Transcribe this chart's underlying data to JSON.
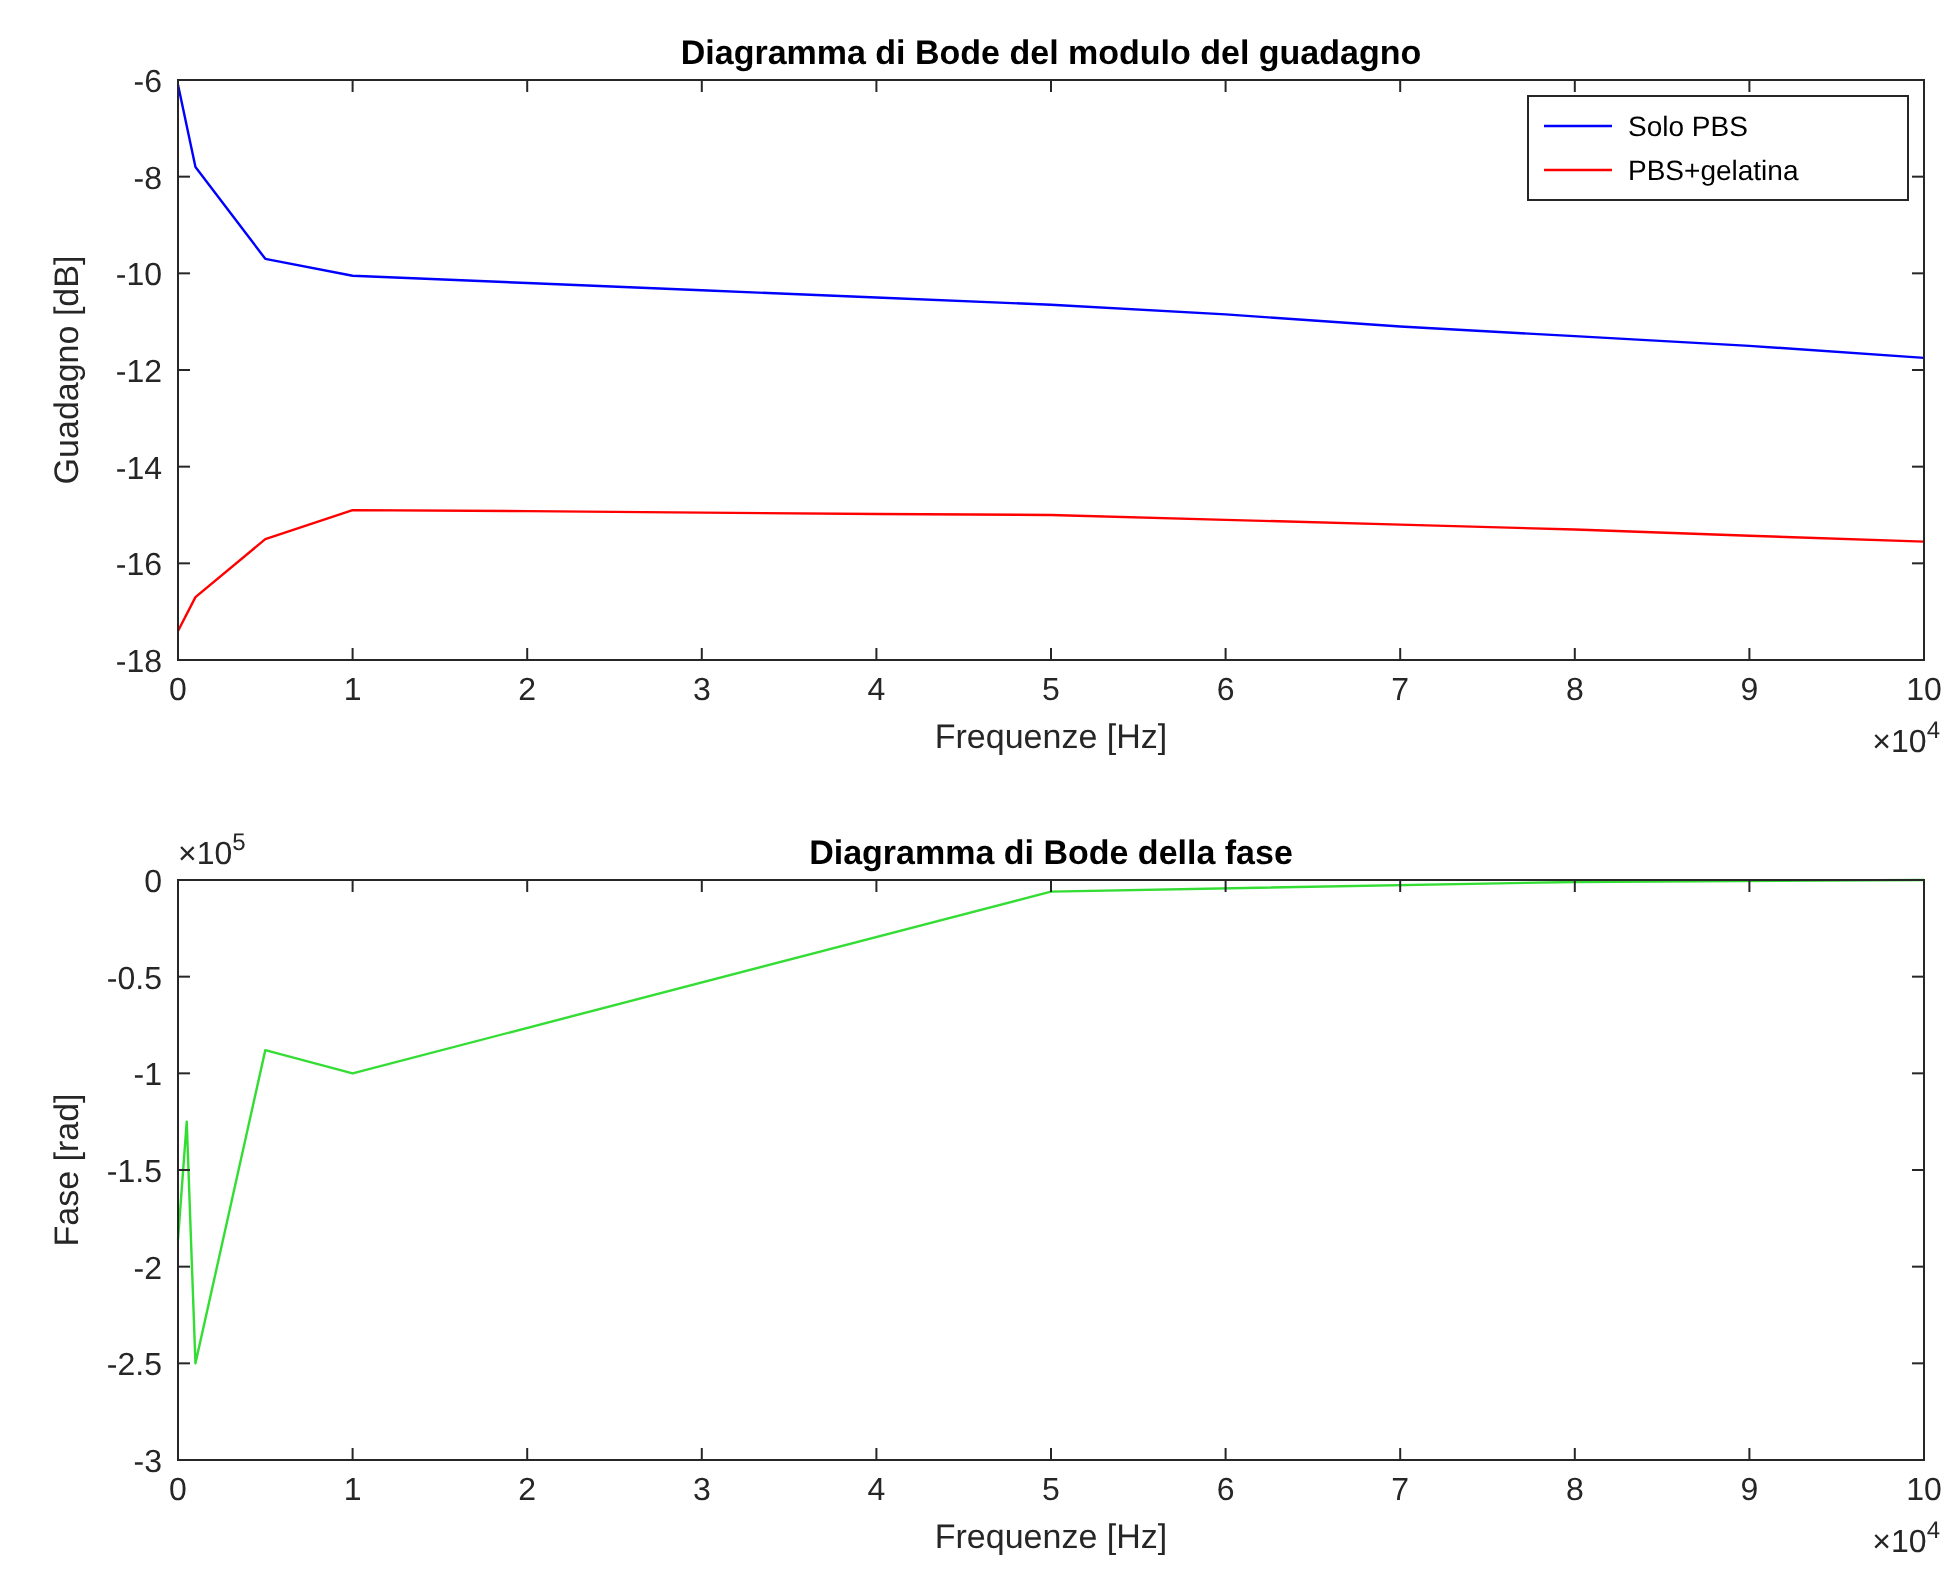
{
  "chart_data": [
    {
      "type": "line",
      "title": "Diagramma di Bode del modulo del guadagno",
      "xlabel": "Frequenze [Hz]",
      "ylabel": "Guadagno [dB]",
      "annotations": [
        "×10$^{4}$"
      ],
      "x": [
        0,
        0.1,
        0.5,
        1,
        2,
        3,
        4,
        5,
        6,
        7,
        8,
        9,
        10
      ],
      "series": [
        {
          "name": "Solo PBS",
          "color": "#0000ff",
          "values": [
            -6.1,
            -7.8,
            -9.7,
            -10.05,
            -10.2,
            -10.35,
            -10.5,
            -10.65,
            -10.85,
            -11.1,
            -11.3,
            -11.5,
            -11.75
          ]
        },
        {
          "name": "PBS+gelatina",
          "color": "#ff0000",
          "values": [
            -17.4,
            -16.7,
            -15.5,
            -14.9,
            -14.92,
            -14.95,
            -14.98,
            -15.0,
            -15.1,
            -15.2,
            -15.3,
            -15.43,
            -15.55
          ]
        }
      ],
      "xlim": [
        0,
        10
      ],
      "xticks": [
        0,
        1,
        2,
        3,
        4,
        5,
        6,
        7,
        8,
        9,
        10
      ],
      "ylim": [
        -18,
        -6
      ],
      "yticks": [
        -18,
        -16,
        -14,
        -12,
        -10,
        -8,
        -6
      ],
      "grid": false,
      "legend": "top right"
    },
    {
      "type": "line",
      "title": "Diagramma di Bode della fase",
      "xlabel": "Frequenze [Hz]",
      "ylabel": "Fase [rad]",
      "annotations": [
        "×10$^{4}$",
        "×10$^{5}$"
      ],
      "x": [
        0,
        0.05,
        0.1,
        0.5,
        1,
        5,
        8,
        10
      ],
      "series": [
        {
          "color": "#33dd33",
          "values": [
            -1.86,
            -1.25,
            -2.5,
            -0.88,
            -1.0,
            -0.06,
            -0.01,
            0
          ]
        }
      ],
      "xlim": [
        0,
        10
      ],
      "xticks": [
        0,
        1,
        2,
        3,
        4,
        5,
        6,
        7,
        8,
        9,
        10
      ],
      "ylim": [
        -3,
        0
      ],
      "yticks": [
        -3,
        -2.5,
        -2,
        -1.5,
        -1,
        -0.5,
        0
      ],
      "grid": false
    }
  ]
}
